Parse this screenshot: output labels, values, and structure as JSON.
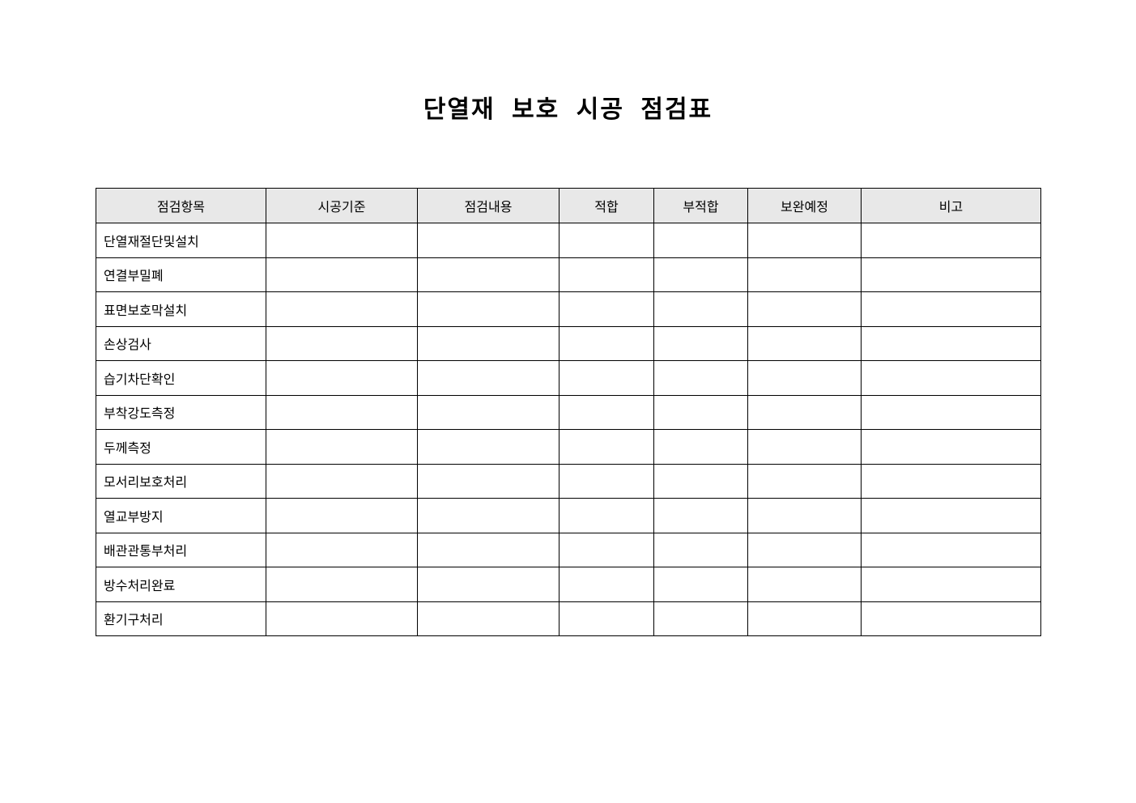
{
  "title": "단열재 보호 시공 점검표",
  "table": {
    "headers": [
      "점검항목",
      "시공기준",
      "점검내용",
      "적합",
      "부적합",
      "보완예정",
      "비고"
    ],
    "rows": [
      "단열재절단및설치",
      "연결부밀폐",
      "표면보호막설치",
      "손상검사",
      "습기차단확인",
      "부착강도측정",
      "두께측정",
      "모서리보호처리",
      "열교부방지",
      "배관관통부처리",
      "방수처리완료",
      "환기구처리"
    ]
  }
}
